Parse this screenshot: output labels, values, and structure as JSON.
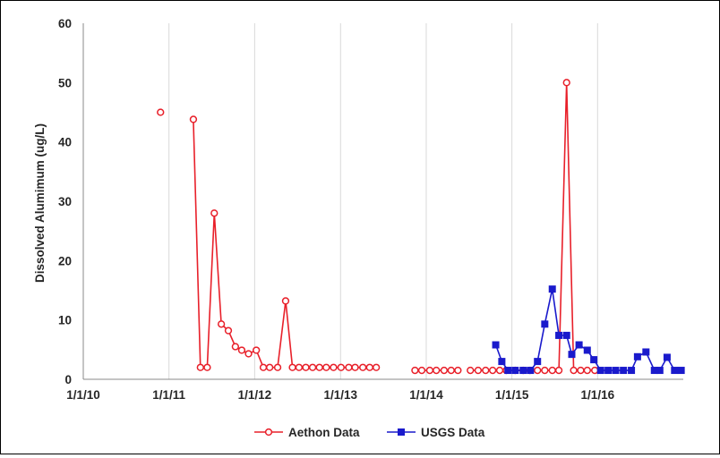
{
  "chart_data": {
    "type": "line",
    "title": "",
    "xlabel": "",
    "ylabel": "Dissolved Alumimum (ug/L)",
    "ylim": [
      0,
      60
    ],
    "yticks": [
      0,
      10,
      20,
      30,
      40,
      50,
      60
    ],
    "x_axis_type": "date",
    "xlim": [
      "2010-01-01",
      "2016-12-31"
    ],
    "xticks": [
      "2010-01-01",
      "2011-01-01",
      "2012-01-01",
      "2013-01-01",
      "2014-01-01",
      "2015-01-01",
      "2016-01-01"
    ],
    "xtick_labels": [
      "1/1/10",
      "1/1/11",
      "1/1/12",
      "1/1/13",
      "1/1/14",
      "1/1/15",
      "1/1/16"
    ],
    "grid": "vertical",
    "legend_position": "bottom",
    "series": [
      {
        "name": "Aethon Data",
        "color": "#e8202a",
        "marker": "open-circle",
        "segments": [
          [
            [
              "2010-11-26",
              45
            ]
          ],
          [
            [
              "2011-04-15",
              43.8
            ],
            [
              "2011-05-15",
              2
            ],
            [
              "2011-06-13",
              2
            ],
            [
              "2011-07-13",
              28
            ],
            [
              "2011-08-12",
              9.3
            ],
            [
              "2011-09-11",
              8.2
            ],
            [
              "2011-10-11",
              5.5
            ],
            [
              "2011-11-07",
              4.9
            ],
            [
              "2011-12-06",
              4.3
            ],
            [
              "2012-01-08",
              4.9
            ],
            [
              "2012-02-07",
              2
            ],
            [
              "2012-03-05",
              2
            ],
            [
              "2012-04-08",
              2
            ],
            [
              "2012-05-12",
              13.2
            ],
            [
              "2012-06-10",
              2
            ],
            [
              "2012-07-08",
              2
            ],
            [
              "2012-08-06",
              2
            ],
            [
              "2012-09-04",
              2
            ],
            [
              "2012-10-03",
              2
            ],
            [
              "2012-11-01",
              2
            ],
            [
              "2012-12-02",
              2
            ],
            [
              "2013-01-03",
              2
            ],
            [
              "2013-02-05",
              2
            ],
            [
              "2013-03-04",
              2
            ],
            [
              "2013-04-06",
              2
            ],
            [
              "2013-05-05",
              2
            ],
            [
              "2013-06-02",
              2
            ]
          ],
          [
            [
              "2013-11-14",
              1.5
            ],
            [
              "2013-12-13",
              1.5
            ],
            [
              "2014-01-16",
              1.5
            ],
            [
              "2014-02-13",
              1.5
            ],
            [
              "2014-03-18",
              1.5
            ],
            [
              "2014-04-17",
              1.5
            ],
            [
              "2014-05-16",
              1.5
            ]
          ],
          [
            [
              "2014-07-08",
              1.5
            ],
            [
              "2014-08-10",
              1.5
            ],
            [
              "2014-09-11",
              1.5
            ],
            [
              "2014-10-11",
              1.5
            ],
            [
              "2014-11-10",
              1.5
            ],
            [
              "2014-12-08",
              1.5
            ],
            [
              "2015-01-15",
              1.5
            ],
            [
              "2015-02-18",
              1.5
            ],
            [
              "2015-03-19",
              1.5
            ],
            [
              "2015-04-20",
              1.5
            ],
            [
              "2015-05-21",
              1.5
            ],
            [
              "2015-06-22",
              1.5
            ],
            [
              "2015-07-20",
              1.5
            ],
            [
              "2015-08-22",
              50
            ],
            [
              "2015-09-21",
              1.5
            ],
            [
              "2015-10-21",
              1.5
            ],
            [
              "2015-11-18",
              1.5
            ],
            [
              "2015-12-20",
              1.5
            ]
          ]
        ]
      },
      {
        "name": "USGS Data",
        "color": "#1a1acc",
        "marker": "filled-square",
        "segments": [
          [
            [
              "2014-10-24",
              5.8
            ],
            [
              "2014-11-19",
              3
            ],
            [
              "2014-12-15",
              1.5
            ],
            [
              "2015-01-15",
              1.5
            ],
            [
              "2015-02-18",
              1.5
            ],
            [
              "2015-03-21",
              1.5
            ],
            [
              "2015-04-20",
              3
            ],
            [
              "2015-05-21",
              9.3
            ],
            [
              "2015-06-22",
              15.2
            ],
            [
              "2015-07-20",
              7.4
            ],
            [
              "2015-08-22",
              7.4
            ],
            [
              "2015-09-13",
              4.2
            ],
            [
              "2015-10-14",
              5.8
            ],
            [
              "2015-11-18",
              4.9
            ],
            [
              "2015-12-16",
              3.3
            ],
            [
              "2016-01-14",
              1.5
            ],
            [
              "2016-02-15",
              1.5
            ],
            [
              "2016-03-18",
              1.5
            ],
            [
              "2016-04-20",
              1.5
            ],
            [
              "2016-05-24",
              1.5
            ],
            [
              "2016-06-19",
              3.8
            ],
            [
              "2016-07-25",
              4.6
            ],
            [
              "2016-08-30",
              1.5
            ],
            [
              "2016-09-22",
              1.5
            ],
            [
              "2016-10-23",
              3.7
            ],
            [
              "2016-11-24",
              1.5
            ],
            [
              "2016-12-22",
              1.5
            ]
          ]
        ]
      }
    ]
  },
  "colors": {
    "grid": "#d9d9d9",
    "axis": "#898989",
    "text": "#262626"
  }
}
